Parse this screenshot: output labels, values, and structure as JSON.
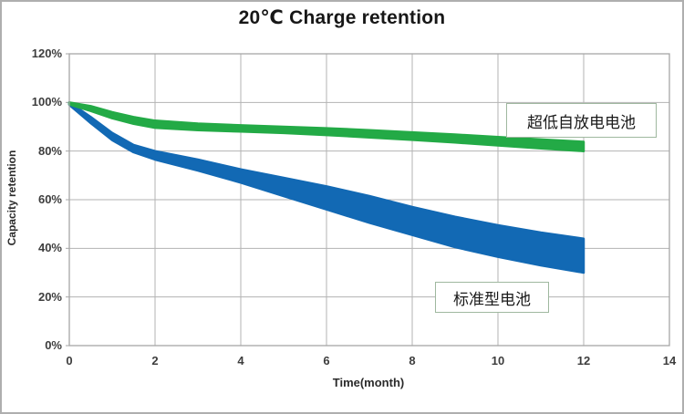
{
  "chart_data": {
    "type": "area",
    "title": "20℃ Charge retention",
    "xlabel": "Time(month)",
    "ylabel": "Capacity retention",
    "xlim": [
      0,
      14
    ],
    "ylim": [
      0,
      120
    ],
    "grid": true,
    "x_ticks": [
      0,
      2,
      4,
      6,
      8,
      10,
      12,
      14
    ],
    "y_ticks": [
      "0%",
      "20%",
      "40%",
      "60%",
      "80%",
      "100%",
      "120%"
    ],
    "y_tick_values": [
      0,
      20,
      40,
      60,
      80,
      100,
      120
    ],
    "series": [
      {
        "name": "标准型电池",
        "band": true,
        "color": "#1269b4",
        "x": [
          0,
          0.5,
          1,
          1.5,
          2,
          3,
          4,
          5,
          6,
          7,
          8,
          9,
          10,
          11,
          12
        ],
        "top": [
          100,
          94,
          87.5,
          82.5,
          80,
          76.5,
          72.5,
          69,
          65.5,
          61.5,
          57,
          53,
          49.5,
          46.5,
          44
        ],
        "bottom": [
          99,
          91.5,
          84.5,
          79.5,
          76.5,
          72,
          67,
          61.5,
          56,
          50.5,
          45.5,
          40.5,
          36.5,
          33,
          30
        ]
      },
      {
        "name": "超低自放电电池",
        "band": true,
        "color": "#23aa46",
        "x": [
          0,
          0.5,
          1,
          1.5,
          2,
          3,
          4,
          5,
          6,
          7,
          8,
          9,
          10,
          11,
          12
        ],
        "top": [
          100,
          98.5,
          96,
          94,
          92.5,
          91.3,
          90.6,
          90,
          89.4,
          88.6,
          87.7,
          86.8,
          85.8,
          84.8,
          83.8
        ],
        "bottom": [
          99.2,
          96.5,
          93.5,
          91.2,
          89.6,
          88.6,
          88,
          87.4,
          86.6,
          85.6,
          84.6,
          83.5,
          82.3,
          81.1,
          80
        ]
      }
    ],
    "annotations": [
      {
        "label": "超低自放电电池"
      },
      {
        "label": "标准型电池"
      }
    ],
    "colors": {
      "standard_battery": "#1269b4",
      "ultra_low_self_discharge": "#23aa46",
      "gridline": "#b3b3b3",
      "plot_border": "#a6a6a6",
      "tick_text": "#3d3d3d",
      "title_text": "#171717",
      "annotation_border": "#9fb89f",
      "background": "#ffffff"
    }
  }
}
